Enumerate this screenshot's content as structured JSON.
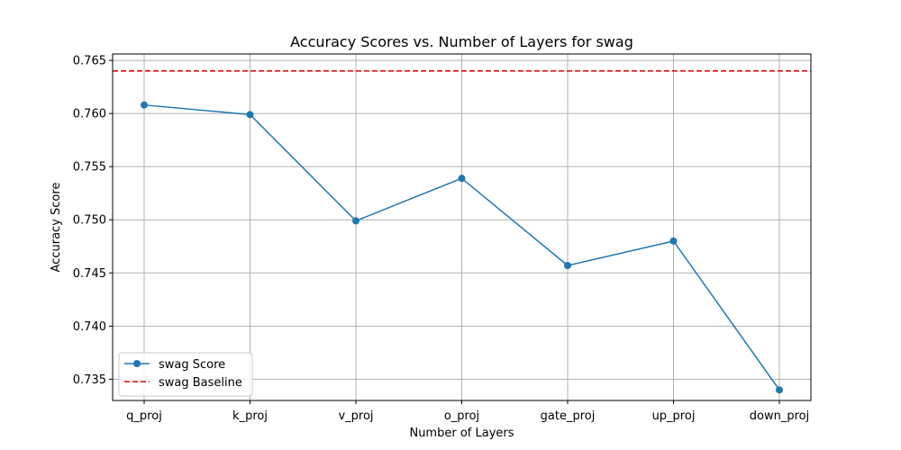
{
  "chart_data": {
    "type": "line",
    "title": "Accuracy Scores vs. Number of Layers for swag",
    "xlabel": "Number of Layers",
    "ylabel": "Accuracy Score",
    "categories": [
      "q_proj",
      "k_proj",
      "v_proj",
      "o_proj",
      "gate_proj",
      "up_proj",
      "down_proj"
    ],
    "series": [
      {
        "name": "swag Score",
        "values": [
          0.7608,
          0.7599,
          0.7499,
          0.7539,
          0.7457,
          0.748,
          0.734
        ],
        "color": "#1f77b4",
        "marker": "circle"
      }
    ],
    "baseline": {
      "name": "swag Baseline",
      "value": 0.764,
      "color": "#e00000",
      "style": "dashed"
    },
    "ylim": [
      0.733,
      0.7656
    ],
    "yticks": [
      0.735,
      0.74,
      0.745,
      0.75,
      0.755,
      0.76,
      0.765
    ],
    "ytick_labels": [
      "0.735",
      "0.740",
      "0.745",
      "0.750",
      "0.755",
      "0.760",
      "0.765"
    ],
    "grid": true,
    "legend_position": "lower-left"
  }
}
